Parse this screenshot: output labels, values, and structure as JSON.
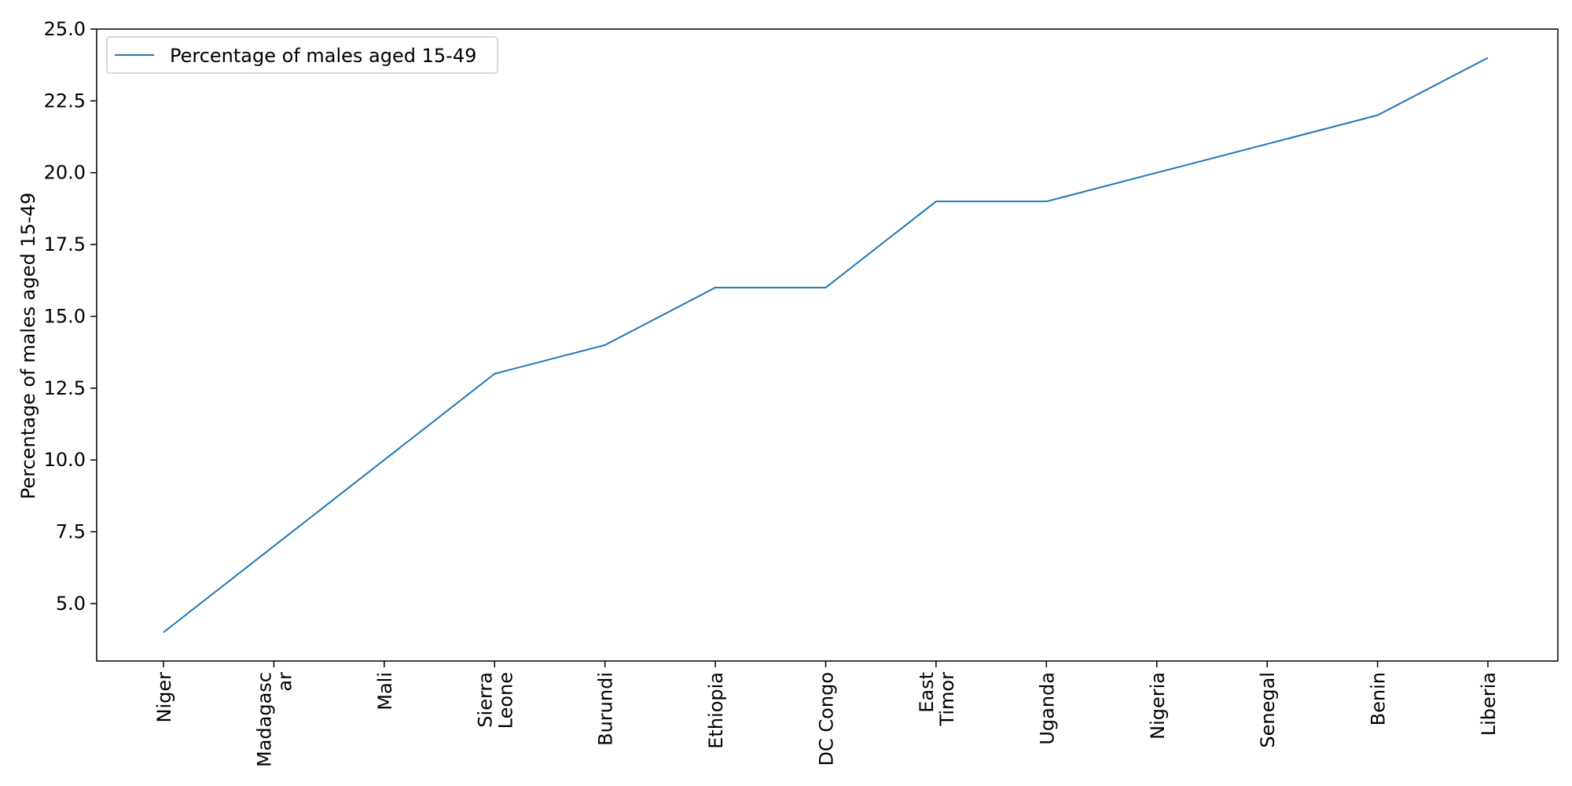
{
  "chart_data": {
    "type": "line",
    "title": "",
    "xlabel": "",
    "ylabel": "Percentage of males aged 15-49",
    "categories": [
      "Niger",
      "Madagascar",
      "Mali",
      "Sierra Leone",
      "Burundi",
      "Ethiopia",
      "DC Congo",
      "East Timor",
      "Uganda",
      "Nigeria",
      "Senegal",
      "Benin",
      "Liberia"
    ],
    "category_tick_labels": [
      [
        "Niger"
      ],
      [
        "Madagasc",
        "ar"
      ],
      [
        "Mali"
      ],
      [
        "Sierra",
        "Leone"
      ],
      [
        "Burundi"
      ],
      [
        "Ethiopia"
      ],
      [
        "DC Congo"
      ],
      [
        "East",
        "Timor"
      ],
      [
        "Uganda"
      ],
      [
        "Nigeria"
      ],
      [
        "Senegal"
      ],
      [
        "Benin"
      ],
      [
        "Liberia"
      ]
    ],
    "series": [
      {
        "name": "Percentage of males aged 15-49",
        "values": [
          4,
          7,
          10,
          13,
          14,
          16,
          16,
          19,
          19,
          20,
          21,
          22,
          24
        ],
        "color": "#1f77b4"
      }
    ],
    "ylim": [
      3.0,
      25.0
    ],
    "yticks": [
      5.0,
      7.5,
      10.0,
      12.5,
      15.0,
      17.5,
      20.0,
      22.5,
      25.0
    ],
    "ytick_labels": [
      "5.0",
      "7.5",
      "10.0",
      "12.5",
      "15.0",
      "17.5",
      "20.0",
      "22.5",
      "25.0"
    ],
    "grid": false,
    "legend_position": "top-left"
  }
}
